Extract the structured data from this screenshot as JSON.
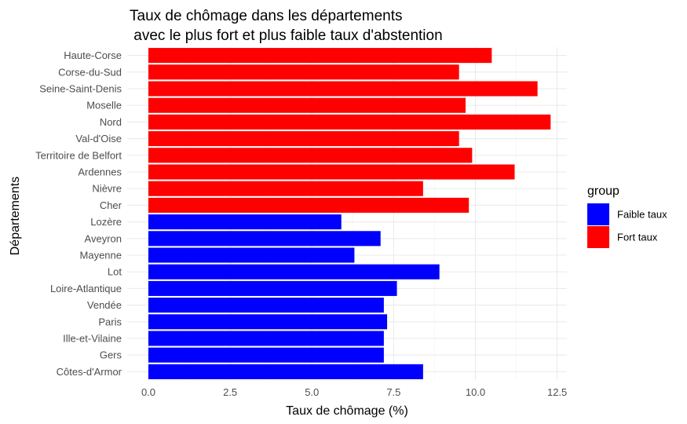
{
  "chart_data": {
    "type": "bar",
    "orientation": "horizontal",
    "title_line1": "Taux de chômage dans les départements",
    "title_line2": " avec le plus fort et plus faible taux d'abstention",
    "xlabel": "Taux de chômage (%)",
    "ylabel": "Départements",
    "xlim": [
      0,
      12.5
    ],
    "x_ticks": [
      "0.0",
      "2.5",
      "5.0",
      "7.5",
      "10.0",
      "12.5"
    ],
    "x_tick_values": [
      0,
      2.5,
      5,
      7.5,
      10,
      12.5
    ],
    "grid": true,
    "legend": {
      "title": "group",
      "position": "right",
      "entries": [
        {
          "label": "Faible taux",
          "color": "#0000FF"
        },
        {
          "label": "Fort taux",
          "color": "#FF0000"
        }
      ]
    },
    "categories": [
      "Haute-Corse",
      "Corse-du-Sud",
      "Seine-Saint-Denis",
      "Moselle",
      "Nord",
      "Val-d'Oise",
      "Territoire de Belfort",
      "Ardennes",
      "Nièvre",
      "Cher",
      "Lozère",
      "Aveyron",
      "Mayenne",
      "Lot",
      "Loire-Atlantique",
      "Vendée",
      "Paris",
      "Ille-et-Vilaine",
      "Gers",
      "Côtes-d'Armor"
    ],
    "values": [
      10.5,
      9.5,
      11.9,
      9.7,
      12.3,
      9.5,
      9.9,
      11.2,
      8.4,
      9.8,
      5.9,
      7.1,
      6.3,
      8.9,
      7.6,
      7.2,
      7.3,
      7.2,
      7.2,
      8.4
    ],
    "groups": [
      "Fort taux",
      "Fort taux",
      "Fort taux",
      "Fort taux",
      "Fort taux",
      "Fort taux",
      "Fort taux",
      "Fort taux",
      "Fort taux",
      "Fort taux",
      "Faible taux",
      "Faible taux",
      "Faible taux",
      "Faible taux",
      "Faible taux",
      "Faible taux",
      "Faible taux",
      "Faible taux",
      "Faible taux",
      "Faible taux"
    ]
  }
}
